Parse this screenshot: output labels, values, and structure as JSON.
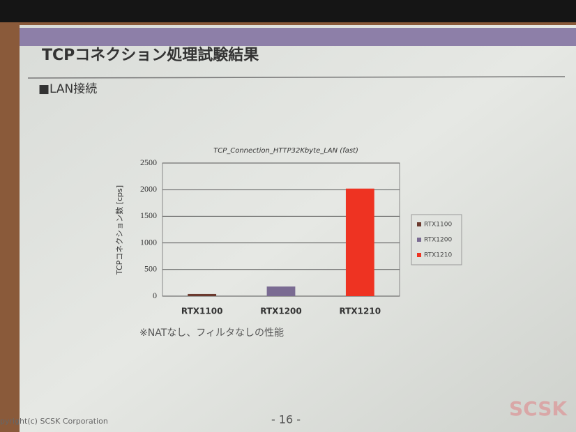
{
  "slide": {
    "title": "TCPコネクション処理試験結果",
    "section": "■LAN接続",
    "note": "※NATなし、フィルタなしの性能",
    "page": "- 16 -",
    "copyright": "pyright(c) SCSK Corporation",
    "logo": "SCSK"
  },
  "chart_data": {
    "type": "bar",
    "title": "TCP_Connection_HTTP32Kbyte_LAN (fast)",
    "y_label": "TCPコネクション数 [cps]",
    "categories": [
      "RTX1100",
      "RTX1200",
      "RTX1210"
    ],
    "values": [
      40,
      180,
      2020
    ],
    "colors": [
      "#6b3a2e",
      "#7a6b92",
      "#ee3322"
    ],
    "ylim": [
      0,
      2500
    ],
    "yticks": [
      0,
      500,
      1000,
      1500,
      2000,
      2500
    ],
    "grid": true,
    "legend": "right"
  }
}
